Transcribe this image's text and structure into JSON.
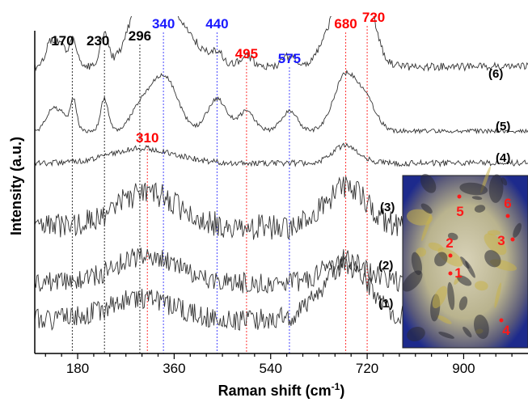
{
  "chart_data": {
    "type": "line",
    "xlabel": "Raman shift (cm",
    "xlabel_sup": "-1",
    "xlabel_close": ")",
    "ylabel": "Intensity (a.u.)",
    "xlim": [
      100,
      1020
    ],
    "x_ticks": [
      180,
      360,
      540,
      720,
      900
    ],
    "peak_markers": [
      {
        "position": 170,
        "label": "170",
        "color": "#000000"
      },
      {
        "position": 230,
        "label": "230",
        "color": "#000000"
      },
      {
        "position": 296,
        "label": "296",
        "color": "#000000"
      },
      {
        "position": 310,
        "label": "310",
        "color": "#ff0000"
      },
      {
        "position": 340,
        "label": "340",
        "color": "#1a1aff"
      },
      {
        "position": 440,
        "label": "440",
        "color": "#1a1aff"
      },
      {
        "position": 495,
        "label": "495",
        "color": "#ff0000"
      },
      {
        "position": 575,
        "label": "575",
        "color": "#1a1aff"
      },
      {
        "position": 680,
        "label": "680",
        "color": "#ff0000"
      },
      {
        "position": 720,
        "label": "720",
        "color": "#ff0000"
      }
    ],
    "series": [
      {
        "name": "(6)",
        "baseline": 6.35,
        "noise": 0.09,
        "seed": 6,
        "peaks": [
          [
            130,
            0.55,
            10
          ],
          [
            150,
            0.45,
            10
          ],
          [
            172,
            0.7,
            6
          ],
          [
            230,
            0.75,
            7
          ],
          [
            296,
            0.85,
            18
          ],
          [
            340,
            1.45,
            45
          ],
          [
            440,
            0.25,
            12
          ],
          [
            495,
            0.25,
            12
          ],
          [
            575,
            0.25,
            12
          ],
          [
            680,
            1.7,
            30
          ],
          [
            720,
            1.0,
            18
          ]
        ]
      },
      {
        "name": "(5)",
        "baseline": 4.85,
        "noise": 0.05,
        "seed": 5,
        "peaks": [
          [
            130,
            0.45,
            10
          ],
          [
            150,
            0.4,
            10
          ],
          [
            172,
            0.75,
            6
          ],
          [
            230,
            0.75,
            7
          ],
          [
            296,
            0.45,
            18
          ],
          [
            340,
            1.3,
            25
          ],
          [
            440,
            0.75,
            18
          ],
          [
            495,
            0.45,
            15
          ],
          [
            575,
            0.45,
            15
          ],
          [
            680,
            1.3,
            22
          ],
          [
            720,
            0.6,
            18
          ]
        ]
      },
      {
        "name": "(4)",
        "baseline": 4.1,
        "noise": 0.07,
        "seed": 4,
        "peaks": [
          [
            300,
            0.35,
            60
          ],
          [
            680,
            0.4,
            25
          ]
        ]
      },
      {
        "name": "(3)",
        "baseline": 2.6,
        "noise": 0.3,
        "seed": 3,
        "peaks": [
          [
            310,
            0.8,
            60
          ],
          [
            680,
            0.9,
            40
          ]
        ]
      },
      {
        "name": "(2)",
        "baseline": 1.3,
        "noise": 0.25,
        "seed": 2,
        "peaks": [
          [
            310,
            0.65,
            60
          ],
          [
            680,
            0.55,
            40
          ]
        ]
      },
      {
        "name": "(1)",
        "baseline": 0.45,
        "noise": 0.25,
        "seed": 1,
        "peaks": [
          [
            300,
            0.5,
            60
          ],
          [
            680,
            1.25,
            45
          ]
        ]
      }
    ]
  },
  "inset": {
    "spots": [
      {
        "label": "1"
      },
      {
        "label": "2"
      },
      {
        "label": "3"
      },
      {
        "label": "4"
      },
      {
        "label": "5"
      },
      {
        "label": "6"
      }
    ],
    "spot_color": "#ff1a1a"
  }
}
